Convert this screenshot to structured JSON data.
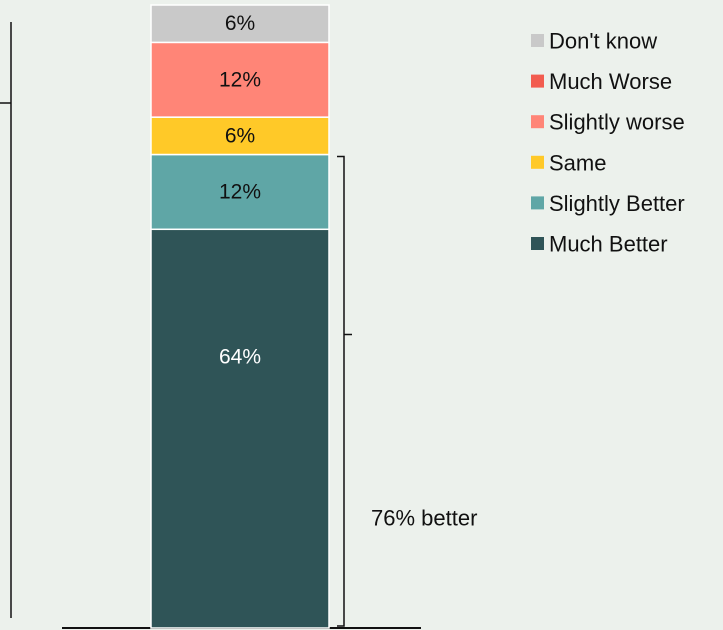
{
  "chart_data": {
    "type": "bar",
    "stacked": true,
    "orientation": "vertical",
    "categories": [
      ""
    ],
    "series": [
      {
        "name": "Much Better",
        "values": [
          64
        ],
        "label": "64%",
        "color": "#2f5457",
        "label_color": "#ffffff"
      },
      {
        "name": "Slightly Better",
        "values": [
          12
        ],
        "label": "12%",
        "color": "#5fa6a6",
        "label_color": "#111111"
      },
      {
        "name": "Same",
        "values": [
          6
        ],
        "label": "6%",
        "color": "#ffc928",
        "label_color": "#111111"
      },
      {
        "name": "Slightly worse",
        "values": [
          12
        ],
        "label": "12%",
        "color": "#ff8577",
        "label_color": "#111111"
      },
      {
        "name": "Don't know",
        "values": [
          6
        ],
        "label": "6%",
        "color": "#c9c9c9",
        "label_color": "#111111"
      }
    ],
    "legend": {
      "position": "top-right",
      "entries": [
        {
          "label": "Don't know",
          "color": "#c9c9c9"
        },
        {
          "label": "Much Worse",
          "color": "#f25c4f"
        },
        {
          "label": "Slightly worse",
          "color": "#ff8577"
        },
        {
          "label": "Same",
          "color": "#ffc928"
        },
        {
          "label": "Slightly Better",
          "color": "#5fa6a6"
        },
        {
          "label": "Much Better",
          "color": "#2f5457"
        }
      ]
    },
    "annotation": {
      "text": "76% better",
      "spans_series": [
        "Much Better",
        "Slightly Better"
      ]
    },
    "ylim": [
      0,
      100
    ],
    "grid": false,
    "title": "",
    "xlabel": "",
    "ylabel": ""
  }
}
